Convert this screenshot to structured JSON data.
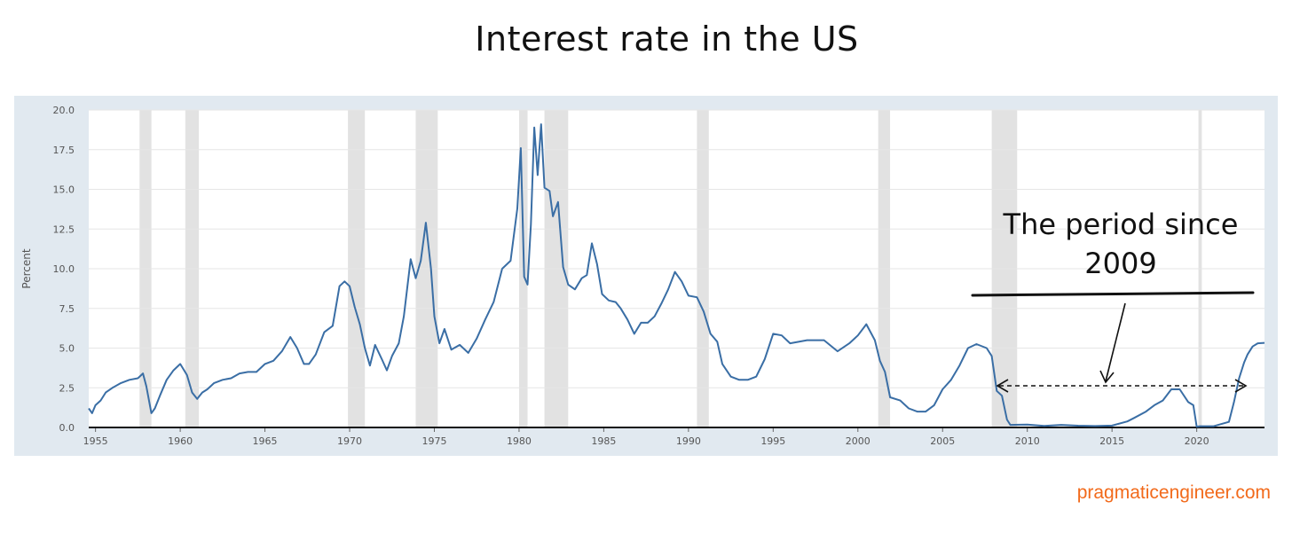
{
  "page": {
    "title": "Interest rate in the US",
    "credit": "pragmaticengineer.com"
  },
  "annotation": {
    "line1": "The period since",
    "line2": "2009"
  },
  "colors": {
    "line": "#3a6ea5",
    "recession": "#e2e2e2",
    "plot_bg": "#ffffff",
    "frame_bg": "#e1e9f0",
    "credit": "#f26a1b"
  },
  "chart_data": {
    "type": "line",
    "ylabel": "Percent",
    "xlim": [
      1954.6,
      2024.0
    ],
    "ylim": [
      0,
      20
    ],
    "x_ticks": [
      1955,
      1960,
      1965,
      1970,
      1975,
      1980,
      1985,
      1990,
      1995,
      2000,
      2005,
      2010,
      2015,
      2020
    ],
    "x_tick_labels": [
      "1955",
      "1960",
      "1965",
      "1970",
      "1975",
      "1980",
      "1985",
      "1990",
      "1995",
      "2000",
      "2005",
      "2010",
      "2015",
      "2020"
    ],
    "y_ticks": [
      0,
      2.5,
      5,
      7.5,
      10,
      12.5,
      15,
      17.5,
      20
    ],
    "y_tick_labels": [
      "0.0",
      "2.5",
      "5.0",
      "7.5",
      "10.0",
      "12.5",
      "15.0",
      "17.5",
      "20.0"
    ],
    "grid": true,
    "recessions": [
      [
        1957.6,
        1958.3
      ],
      [
        1960.3,
        1961.1
      ],
      [
        1969.9,
        1970.9
      ],
      [
        1973.9,
        1975.2
      ],
      [
        1980.0,
        1980.5
      ],
      [
        1981.5,
        1982.9
      ],
      [
        1990.5,
        1991.2
      ],
      [
        2001.2,
        2001.9
      ],
      [
        2007.9,
        2009.4
      ],
      [
        2020.1,
        2020.3
      ]
    ],
    "series": [
      {
        "x": [
          1954.6,
          1954.8,
          1955.0,
          1955.3,
          1955.6,
          1956.0,
          1956.5,
          1957.0,
          1957.5,
          1957.8,
          1958.0,
          1958.3,
          1958.5,
          1958.8,
          1959.2,
          1959.6,
          1960.0,
          1960.4,
          1960.7,
          1961.0,
          1961.3,
          1961.6,
          1962.0,
          1962.5,
          1963.0,
          1963.5,
          1964.0,
          1964.5,
          1965.0,
          1965.5,
          1966.0,
          1966.5,
          1966.9,
          1967.3,
          1967.6,
          1968.0,
          1968.5,
          1969.0,
          1969.4,
          1969.7,
          1970.0,
          1970.3,
          1970.6,
          1970.9,
          1971.2,
          1971.5,
          1971.9,
          1972.2,
          1972.5,
          1972.9,
          1973.2,
          1973.6,
          1973.9,
          1974.2,
          1974.5,
          1974.8,
          1975.0,
          1975.3,
          1975.6,
          1976.0,
          1976.5,
          1977.0,
          1977.5,
          1978.0,
          1978.5,
          1979.0,
          1979.5,
          1979.9,
          1980.1,
          1980.3,
          1980.5,
          1980.7,
          1980.9,
          1981.1,
          1981.3,
          1981.5,
          1981.8,
          1982.0,
          1982.3,
          1982.6,
          1982.9,
          1983.3,
          1983.7,
          1984.0,
          1984.3,
          1984.6,
          1984.9,
          1985.3,
          1985.7,
          1986.0,
          1986.4,
          1986.8,
          1987.2,
          1987.6,
          1988.0,
          1988.4,
          1988.8,
          1989.2,
          1989.6,
          1990.0,
          1990.5,
          1990.9,
          1991.3,
          1991.7,
          1992.0,
          1992.5,
          1993.0,
          1993.5,
          1994.0,
          1994.5,
          1995.0,
          1995.5,
          1996.0,
          1997.0,
          1998.0,
          1998.8,
          1999.5,
          2000.0,
          2000.5,
          2001.0,
          2001.3,
          2001.6,
          2001.9,
          2002.5,
          2003.0,
          2003.5,
          2004.0,
          2004.5,
          2005.0,
          2005.5,
          2006.0,
          2006.5,
          2007.0,
          2007.6,
          2007.9,
          2008.2,
          2008.5,
          2008.8,
          2009.0,
          2010.0,
          2011.0,
          2012.0,
          2013.0,
          2014.0,
          2015.0,
          2015.9,
          2016.3,
          2017.0,
          2017.5,
          2018.0,
          2018.5,
          2019.0,
          2019.5,
          2019.8,
          2020.0,
          2020.2,
          2021.0,
          2021.9,
          2022.2,
          2022.5,
          2022.8,
          2023.0,
          2023.3,
          2023.6,
          2024.0
        ],
        "y": [
          1.2,
          0.9,
          1.4,
          1.7,
          2.2,
          2.5,
          2.8,
          3.0,
          3.1,
          3.4,
          2.6,
          0.9,
          1.2,
          2.0,
          3.0,
          3.6,
          4.0,
          3.3,
          2.2,
          1.8,
          2.2,
          2.4,
          2.8,
          3.0,
          3.1,
          3.4,
          3.5,
          3.5,
          4.0,
          4.2,
          4.8,
          5.7,
          5.0,
          4.0,
          4.0,
          4.6,
          6.0,
          6.4,
          8.9,
          9.2,
          8.9,
          7.6,
          6.5,
          5.0,
          3.9,
          5.2,
          4.3,
          3.6,
          4.5,
          5.3,
          7.0,
          10.6,
          9.4,
          10.5,
          12.9,
          10.0,
          7.0,
          5.3,
          6.2,
          4.9,
          5.2,
          4.7,
          5.6,
          6.8,
          7.9,
          10.0,
          10.5,
          13.8,
          17.6,
          9.5,
          9.0,
          12.8,
          18.9,
          15.9,
          19.1,
          15.1,
          14.9,
          13.3,
          14.2,
          10.1,
          9.0,
          8.7,
          9.4,
          9.6,
          11.6,
          10.3,
          8.4,
          8.0,
          7.9,
          7.5,
          6.8,
          5.9,
          6.6,
          6.6,
          7.0,
          7.8,
          8.7,
          9.8,
          9.2,
          8.3,
          8.2,
          7.3,
          5.9,
          5.4,
          4.0,
          3.2,
          3.0,
          3.0,
          3.2,
          4.3,
          5.9,
          5.8,
          5.3,
          5.5,
          5.5,
          4.8,
          5.3,
          5.8,
          6.5,
          5.5,
          4.2,
          3.5,
          1.9,
          1.7,
          1.2,
          1.0,
          1.0,
          1.4,
          2.4,
          3.0,
          3.9,
          5.0,
          5.25,
          5.0,
          4.5,
          2.3,
          2.0,
          0.5,
          0.16,
          0.18,
          0.1,
          0.16,
          0.11,
          0.09,
          0.12,
          0.38,
          0.6,
          1.0,
          1.4,
          1.7,
          2.4,
          2.4,
          1.6,
          1.4,
          0.05,
          0.08,
          0.08,
          0.35,
          1.6,
          3.1,
          4.1,
          4.6,
          5.1,
          5.3,
          5.33
        ]
      }
    ]
  }
}
